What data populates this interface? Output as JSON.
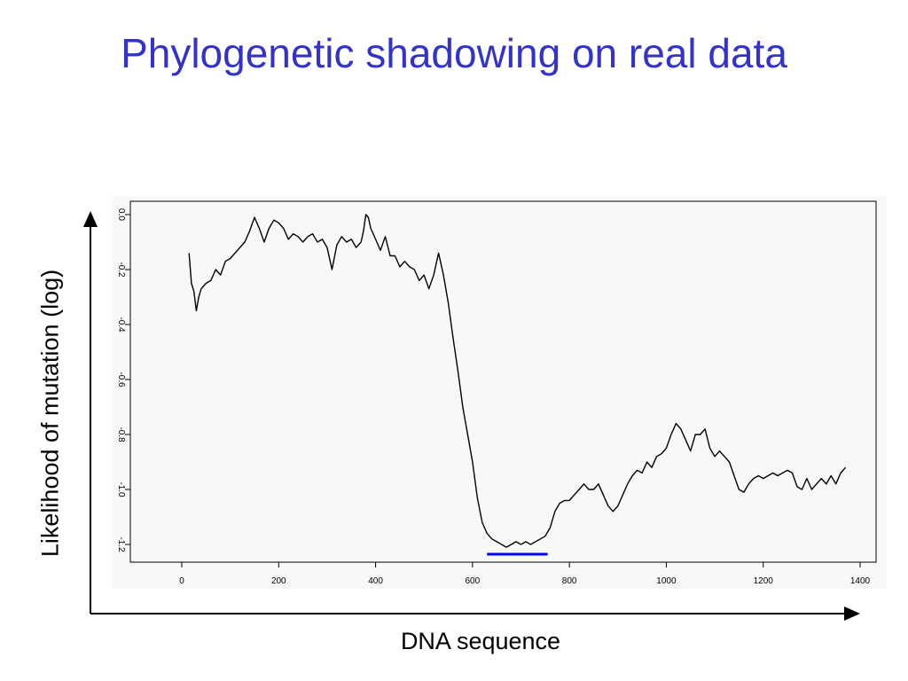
{
  "title": "Phylogenetic shadowing on real data",
  "colors": {
    "title": "#3333cc",
    "series": "#000000",
    "highlight": "#0000ee",
    "plot_bg": "#f8f8f8"
  },
  "chart_data": {
    "type": "line",
    "title": "",
    "xlabel": "DNA sequence",
    "ylabel": "Likelihood of mutation (log)",
    "xlim": [
      0,
      1400
    ],
    "ylim": [
      -1.25,
      0.02
    ],
    "x_ticks": [
      0,
      200,
      400,
      600,
      800,
      1000,
      1200,
      1400
    ],
    "x_tick_labels": [
      "0",
      "200",
      "400",
      "600",
      "800",
      "1000",
      "1200",
      "1400"
    ],
    "y_ticks": [
      0.0,
      -0.2,
      -0.4,
      -0.6,
      -0.8,
      -1.0,
      -1.2
    ],
    "y_tick_labels": [
      "0.0",
      "-0.2",
      "-0.4",
      "-0.6",
      "-0.8",
      "-1.0",
      "-1.2"
    ],
    "grid": false,
    "series": [
      {
        "x": [
          15,
          20,
          25,
          30,
          35,
          40,
          50,
          60,
          70,
          80,
          90,
          100,
          110,
          120,
          130,
          140,
          150,
          160,
          170,
          180,
          190,
          200,
          210,
          220,
          230,
          240,
          250,
          260,
          270,
          280,
          290,
          300,
          310,
          320,
          330,
          340,
          350,
          360,
          370,
          375,
          380,
          385,
          390,
          400,
          410,
          420,
          430,
          440,
          450,
          460,
          470,
          480,
          490,
          500,
          510,
          520,
          530,
          540,
          550,
          560,
          570,
          580,
          590,
          600,
          610,
          620,
          630,
          640,
          650,
          660,
          670,
          680,
          690,
          700,
          710,
          720,
          730,
          740,
          750,
          760,
          770,
          780,
          790,
          800,
          810,
          820,
          830,
          840,
          850,
          860,
          870,
          880,
          890,
          900,
          910,
          920,
          930,
          940,
          950,
          960,
          970,
          980,
          990,
          1000,
          1010,
          1020,
          1030,
          1040,
          1050,
          1060,
          1070,
          1080,
          1090,
          1100,
          1110,
          1120,
          1130,
          1140,
          1150,
          1160,
          1170,
          1180,
          1190,
          1200,
          1210,
          1220,
          1230,
          1240,
          1250,
          1260,
          1270,
          1280,
          1290,
          1300,
          1310,
          1320,
          1330,
          1340,
          1350,
          1360,
          1370
        ],
        "y": [
          -0.14,
          -0.25,
          -0.28,
          -0.35,
          -0.3,
          -0.27,
          -0.25,
          -0.24,
          -0.2,
          -0.22,
          -0.17,
          -0.16,
          -0.14,
          -0.12,
          -0.1,
          -0.06,
          -0.01,
          -0.05,
          -0.1,
          -0.05,
          -0.02,
          -0.03,
          -0.05,
          -0.09,
          -0.07,
          -0.08,
          -0.1,
          -0.08,
          -0.07,
          -0.1,
          -0.09,
          -0.12,
          -0.2,
          -0.11,
          -0.08,
          -0.1,
          -0.09,
          -0.12,
          -0.1,
          -0.06,
          0.0,
          -0.01,
          -0.05,
          -0.09,
          -0.13,
          -0.08,
          -0.15,
          -0.15,
          -0.19,
          -0.17,
          -0.19,
          -0.2,
          -0.24,
          -0.22,
          -0.27,
          -0.22,
          -0.14,
          -0.22,
          -0.32,
          -0.45,
          -0.57,
          -0.7,
          -0.8,
          -0.9,
          -1.03,
          -1.12,
          -1.16,
          -1.18,
          -1.19,
          -1.2,
          -1.21,
          -1.2,
          -1.19,
          -1.2,
          -1.19,
          -1.2,
          -1.19,
          -1.18,
          -1.17,
          -1.14,
          -1.08,
          -1.05,
          -1.04,
          -1.04,
          -1.02,
          -1.0,
          -0.98,
          -1.0,
          -1.0,
          -0.98,
          -1.02,
          -1.06,
          -1.08,
          -1.06,
          -1.02,
          -0.98,
          -0.95,
          -0.93,
          -0.94,
          -0.9,
          -0.92,
          -0.88,
          -0.87,
          -0.85,
          -0.8,
          -0.76,
          -0.78,
          -0.82,
          -0.86,
          -0.8,
          -0.8,
          -0.78,
          -0.85,
          -0.88,
          -0.86,
          -0.88,
          -0.9,
          -0.95,
          -1.0,
          -1.01,
          -0.98,
          -0.96,
          -0.95,
          -0.96,
          -0.95,
          -0.94,
          -0.95,
          -0.94,
          -0.93,
          -0.94,
          -0.99,
          -1.0,
          -0.96,
          -1.0,
          -0.98,
          -0.96,
          -0.98,
          -0.95,
          -0.98,
          -0.94,
          -0.92
        ]
      }
    ],
    "highlight_region": [
      630,
      755
    ]
  }
}
